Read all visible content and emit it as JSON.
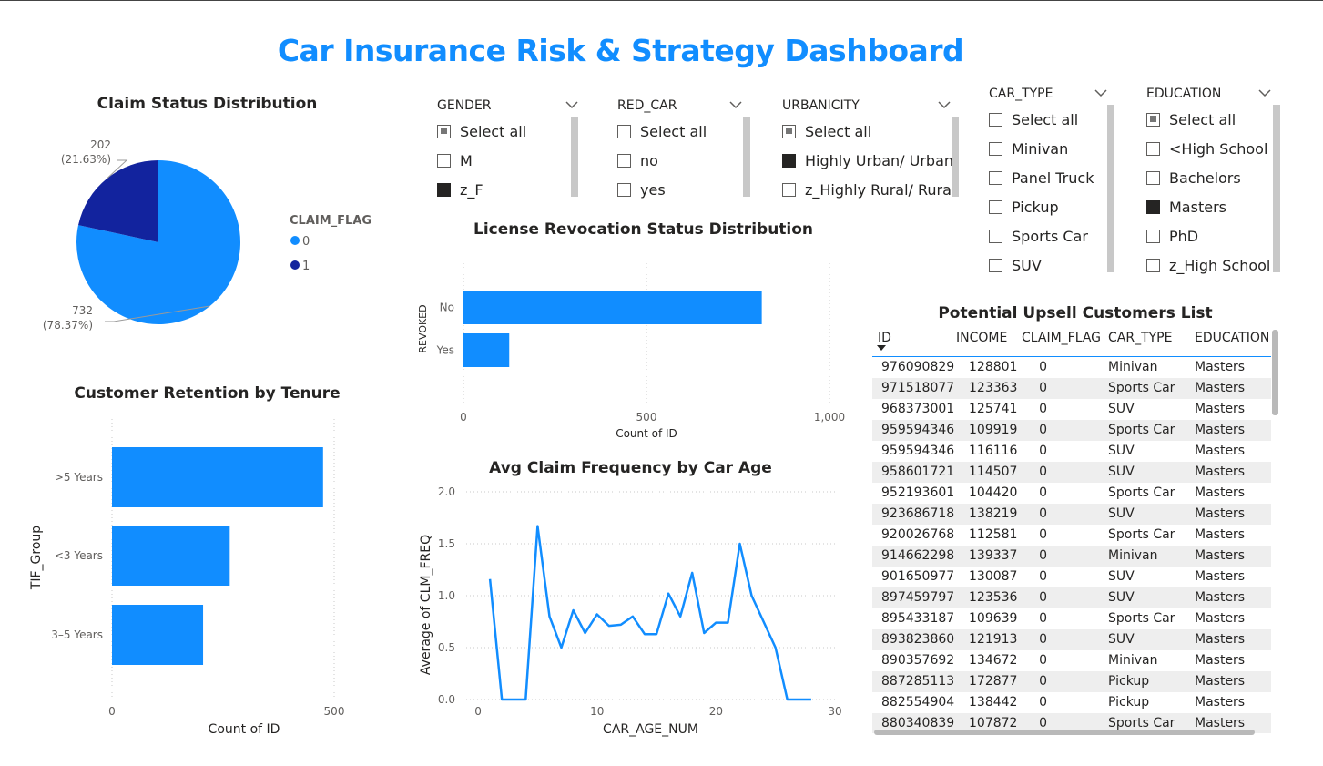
{
  "dashboard": {
    "title": "Car Insurance Risk & Strategy Dashboard"
  },
  "colors": {
    "primary": "#118DFF",
    "secondary": "#12239E",
    "accent_title": "#118DFF"
  },
  "pie": {
    "title": "Claim Status Distribution",
    "legend_title": "CLAIM_FLAG",
    "slices": [
      {
        "label": "0",
        "value": 732,
        "percent_label": "(78.37%)",
        "value_label": "732",
        "color": "#118DFF"
      },
      {
        "label": "1",
        "value": 202,
        "percent_label": "(21.63%)",
        "value_label": "202",
        "color": "#12239E"
      }
    ]
  },
  "slicers": {
    "gender": {
      "header": "GENDER",
      "items": [
        {
          "label": "Select all",
          "state": "partial"
        },
        {
          "label": "M",
          "state": "off"
        },
        {
          "label": "z_F",
          "state": "on"
        }
      ]
    },
    "red_car": {
      "header": "RED_CAR",
      "items": [
        {
          "label": "Select all",
          "state": "off"
        },
        {
          "label": "no",
          "state": "off"
        },
        {
          "label": "yes",
          "state": "off"
        }
      ]
    },
    "urbanicity": {
      "header": "URBANICITY",
      "items": [
        {
          "label": "Select all",
          "state": "partial"
        },
        {
          "label": "Highly Urban/ Urban",
          "state": "on"
        },
        {
          "label": "z_Highly Rural/ Rural",
          "state": "off"
        }
      ]
    },
    "car_type": {
      "header": "CAR_TYPE",
      "items": [
        {
          "label": "Select all",
          "state": "off"
        },
        {
          "label": "Minivan",
          "state": "off"
        },
        {
          "label": "Panel Truck",
          "state": "off"
        },
        {
          "label": "Pickup",
          "state": "off"
        },
        {
          "label": "Sports Car",
          "state": "off"
        },
        {
          "label": "SUV",
          "state": "off"
        }
      ]
    },
    "education": {
      "header": "EDUCATION",
      "items": [
        {
          "label": "Select all",
          "state": "partial"
        },
        {
          "label": "<High School",
          "state": "off"
        },
        {
          "label": "Bachelors",
          "state": "off"
        },
        {
          "label": "Masters",
          "state": "on"
        },
        {
          "label": "PhD",
          "state": "off"
        },
        {
          "label": "z_High School",
          "state": "off"
        }
      ]
    }
  },
  "chart_data": [
    {
      "type": "pie",
      "title": "Claim Status Distribution",
      "legend_title": "CLAIM_FLAG",
      "categories": [
        "0",
        "1"
      ],
      "values": [
        732,
        202
      ],
      "legend_position": "right"
    },
    {
      "type": "bar",
      "orientation": "horizontal",
      "title": "License Revocation Status Distribution",
      "categories": [
        "No",
        "Yes"
      ],
      "values": [
        815,
        125
      ],
      "xlabel": "Count of ID",
      "ylabel": "REVOKED",
      "xlim": [
        0,
        1000
      ],
      "xticks": [
        "0",
        "500",
        "1,000"
      ],
      "grid": true
    },
    {
      "type": "bar",
      "orientation": "horizontal",
      "title": "Customer Retention by Tenure",
      "categories": [
        ">5 Years",
        "<3 Years",
        "3–5 Years"
      ],
      "values": [
        475,
        265,
        205
      ],
      "xlabel": "Count of ID",
      "ylabel": "TIF_Group",
      "xlim": [
        0,
        520
      ],
      "xticks": [
        "0",
        "500"
      ],
      "grid": true
    },
    {
      "type": "line",
      "title": "Avg Claim Frequency by Car Age",
      "xlabel": "CAR_AGE_NUM",
      "ylabel": "Average of CLM_FREQ",
      "xlim": [
        -1,
        30
      ],
      "ylim": [
        0,
        2
      ],
      "xticks": [
        "0",
        "10",
        "20",
        "30"
      ],
      "yticks": [
        "0.0",
        "0.5",
        "1.0",
        "1.5",
        "2.0"
      ],
      "x": [
        1,
        2,
        3,
        4,
        5,
        6,
        7,
        8,
        9,
        10,
        11,
        12,
        13,
        14,
        15,
        16,
        17,
        18,
        19,
        20,
        21,
        22,
        23,
        24,
        25,
        26,
        27,
        28
      ],
      "y": [
        1.16,
        0.0,
        0.0,
        0.0,
        1.67,
        0.8,
        0.5,
        0.86,
        0.64,
        0.82,
        0.71,
        0.72,
        0.8,
        0.63,
        0.63,
        1.02,
        0.8,
        1.22,
        0.64,
        0.74,
        0.74,
        1.5,
        1.0,
        0.75,
        0.5,
        0.0,
        0.0,
        0.0
      ],
      "grid": true
    }
  ],
  "table": {
    "title": "Potential Upsell Customers List",
    "columns": [
      "ID",
      "INCOME",
      "CLAIM_FLAG",
      "CAR_TYPE",
      "EDUCATION"
    ],
    "rows": [
      [
        "976090829",
        "128801",
        "0",
        "Minivan",
        "Masters"
      ],
      [
        "971518077",
        "123363",
        "0",
        "Sports Car",
        "Masters"
      ],
      [
        "968373001",
        "125741",
        "0",
        "SUV",
        "Masters"
      ],
      [
        "959594346",
        "109919",
        "0",
        "Sports Car",
        "Masters"
      ],
      [
        "959594346",
        "116116",
        "0",
        "SUV",
        "Masters"
      ],
      [
        "958601721",
        "114507",
        "0",
        "SUV",
        "Masters"
      ],
      [
        "952193601",
        "104420",
        "0",
        "Sports Car",
        "Masters"
      ],
      [
        "923686718",
        "138219",
        "0",
        "SUV",
        "Masters"
      ],
      [
        "920026768",
        "112581",
        "0",
        "Sports Car",
        "Masters"
      ],
      [
        "914662298",
        "139337",
        "0",
        "Minivan",
        "Masters"
      ],
      [
        "901650977",
        "130087",
        "0",
        "SUV",
        "Masters"
      ],
      [
        "897459797",
        "123536",
        "0",
        "SUV",
        "Masters"
      ],
      [
        "895433187",
        "109639",
        "0",
        "Sports Car",
        "Masters"
      ],
      [
        "893823860",
        "121913",
        "0",
        "SUV",
        "Masters"
      ],
      [
        "890357692",
        "134672",
        "0",
        "Minivan",
        "Masters"
      ],
      [
        "887285113",
        "172877",
        "0",
        "Pickup",
        "Masters"
      ],
      [
        "882554904",
        "138442",
        "0",
        "Pickup",
        "Masters"
      ],
      [
        "880340839",
        "107872",
        "0",
        "Sports Car",
        "Masters"
      ]
    ]
  }
}
